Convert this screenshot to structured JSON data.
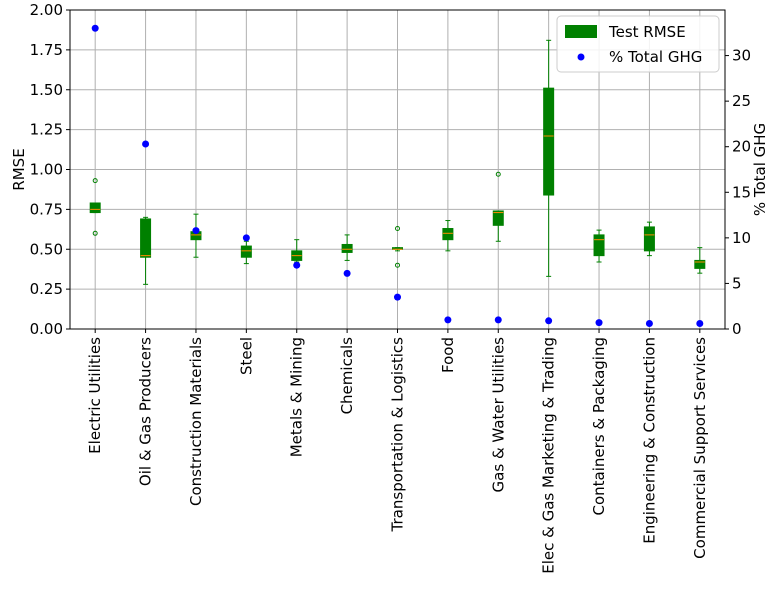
{
  "chart_data": {
    "type": "box",
    "xlabel": "",
    "ylabel": "RMSE",
    "y2label": "% Total GHG",
    "ylim": [
      0,
      2.0
    ],
    "y2lim": [
      0,
      35
    ],
    "yticks": [
      "0.00",
      "0.25",
      "0.50",
      "0.75",
      "1.00",
      "1.25",
      "1.50",
      "1.75",
      "2.00"
    ],
    "y2ticks": [
      "0",
      "5",
      "10",
      "15",
      "20",
      "25",
      "30"
    ],
    "grid": true,
    "legend_position": "top-right",
    "legend": [
      {
        "label": "Test RMSE",
        "marker": "box",
        "color": "#008000"
      },
      {
        "label": "% Total GHG",
        "marker": "dot",
        "color": "#0000ff"
      }
    ],
    "categories": [
      "Electric Utilities",
      "Oil & Gas Producers",
      "Construction Materials",
      "Steel",
      "Metals & Mining",
      "Chemicals",
      "Transportation & Logistics",
      "Food",
      "Gas & Water Utilities",
      "Elec & Gas Marketing & Trading",
      "Containers & Packaging",
      "Engineering & Construction",
      "Commercial Support Services"
    ],
    "boxes": [
      {
        "low": 0.73,
        "q1": 0.73,
        "median": 0.75,
        "q3": 0.79,
        "high": 0.79,
        "outliers": [
          0.93,
          0.6
        ]
      },
      {
        "low": 0.28,
        "q1": 0.45,
        "median": 0.46,
        "q3": 0.69,
        "high": 0.7,
        "outliers": []
      },
      {
        "low": 0.45,
        "q1": 0.56,
        "median": 0.59,
        "q3": 0.61,
        "high": 0.72,
        "outliers": []
      },
      {
        "low": 0.41,
        "q1": 0.45,
        "median": 0.49,
        "q3": 0.52,
        "high": 0.55,
        "outliers": []
      },
      {
        "low": 0.42,
        "q1": 0.43,
        "median": 0.46,
        "q3": 0.49,
        "high": 0.56,
        "outliers": []
      },
      {
        "low": 0.43,
        "q1": 0.48,
        "median": 0.5,
        "q3": 0.53,
        "high": 0.59,
        "outliers": []
      },
      {
        "low": 0.49,
        "q1": 0.5,
        "median": 0.5,
        "q3": 0.51,
        "high": 0.51,
        "outliers": [
          0.63,
          0.4
        ]
      },
      {
        "low": 0.49,
        "q1": 0.56,
        "median": 0.6,
        "q3": 0.63,
        "high": 0.68,
        "outliers": []
      },
      {
        "low": 0.55,
        "q1": 0.65,
        "median": 0.73,
        "q3": 0.74,
        "high": 0.74,
        "outliers": [
          0.97
        ]
      },
      {
        "low": 0.33,
        "q1": 0.84,
        "median": 1.21,
        "q3": 1.51,
        "high": 1.81,
        "outliers": []
      },
      {
        "low": 0.42,
        "q1": 0.46,
        "median": 0.56,
        "q3": 0.59,
        "high": 0.62,
        "outliers": []
      },
      {
        "low": 0.46,
        "q1": 0.49,
        "median": 0.59,
        "q3": 0.64,
        "high": 0.67,
        "outliers": []
      },
      {
        "low": 0.35,
        "q1": 0.38,
        "median": 0.42,
        "q3": 0.43,
        "high": 0.51,
        "outliers": []
      }
    ],
    "ghg_percent": [
      33.0,
      20.3,
      10.8,
      10.0,
      7.0,
      6.1,
      3.5,
      1.0,
      1.0,
      0.9,
      0.7,
      0.6,
      0.6
    ]
  }
}
